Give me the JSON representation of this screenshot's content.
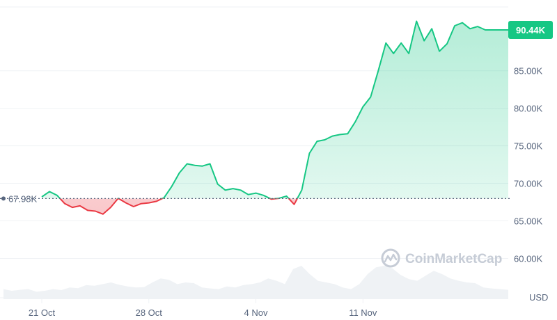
{
  "chart_data": {
    "type": "area",
    "y_axis_labels": [
      "90.44K",
      "85.00K",
      "80.00K",
      "75.00K",
      "70.00K",
      "65.00K",
      "60.00K"
    ],
    "y_ticks": [
      85000,
      80000,
      75000,
      70000,
      65000,
      60000
    ],
    "ylim": [
      55500,
      93500
    ],
    "x_tick_labels": [
      "21 Oct",
      "28 Oct",
      "4 Nov",
      "11 Nov"
    ],
    "currency_label": "USD",
    "baseline_value": 67980,
    "baseline_label": "67.98K",
    "current_value": 90440,
    "current_label": "90.44K",
    "grid": true,
    "colors": {
      "up": "#16c784",
      "down": "#ea3943",
      "baseline": "#58667e",
      "badge": "#16c784",
      "volume": "#eff2f5",
      "grid": "#eff2f5"
    },
    "series": [
      {
        "x_days_relative": [
          0,
          0.5,
          1,
          1.5,
          2,
          2.5,
          3,
          3.5,
          4,
          4.5,
          5,
          5.5,
          6,
          6.5,
          7,
          7.5,
          8,
          8.5,
          9,
          9.5,
          10,
          10.5,
          11,
          11.5,
          12,
          12.5,
          13,
          13.5,
          14,
          14.5,
          15,
          15.5,
          16,
          16.5,
          17,
          17.5,
          18,
          18.5,
          19,
          19.5,
          20,
          20.5,
          21,
          21.5,
          22,
          22.5,
          23,
          23.5,
          24,
          24.5,
          25,
          25.5,
          26,
          26.5,
          27,
          27.5,
          28,
          28.5,
          29,
          29.5,
          30,
          30.5
        ],
        "values": [
          68200,
          68900,
          68400,
          67300,
          66800,
          67000,
          66400,
          66300,
          65900,
          66800,
          68000,
          67400,
          66900,
          67300,
          67400,
          67600,
          68100,
          69600,
          71400,
          72600,
          72400,
          72300,
          72600,
          69900,
          69100,
          69300,
          69100,
          68500,
          68700,
          68400,
          67900,
          68000,
          68300,
          67200,
          69100,
          74000,
          75600,
          75800,
          76300,
          76500,
          76600,
          78200,
          80200,
          81500,
          85000,
          88700,
          87300,
          88700,
          87300,
          91600,
          89000,
          90600,
          87600,
          88600,
          91000,
          91400,
          90600,
          90900,
          90440,
          90440,
          90440,
          90440
        ]
      }
    ],
    "volume_relative": [
      0.3,
      0.25,
      0.28,
      0.3,
      0.22,
      0.25,
      0.3,
      0.27,
      0.35,
      0.33,
      0.42,
      0.4,
      0.45,
      0.5,
      0.43,
      0.38,
      0.35,
      0.36,
      0.5,
      0.62,
      0.58,
      0.45,
      0.5,
      0.48,
      0.35,
      0.32,
      0.3,
      0.38,
      0.35,
      0.42,
      0.45,
      0.5,
      0.62,
      0.55,
      0.45,
      0.9,
      1.0,
      0.75,
      0.55,
      0.5,
      0.45,
      0.35,
      0.3,
      0.45,
      0.75,
      0.95,
      1.0,
      0.92,
      0.72,
      0.6,
      0.55,
      0.7,
      0.85,
      0.75,
      0.62,
      0.55,
      0.5,
      0.48,
      0.35,
      0.32,
      0.3,
      0.28
    ],
    "watermark": "CoinMarketCap"
  }
}
